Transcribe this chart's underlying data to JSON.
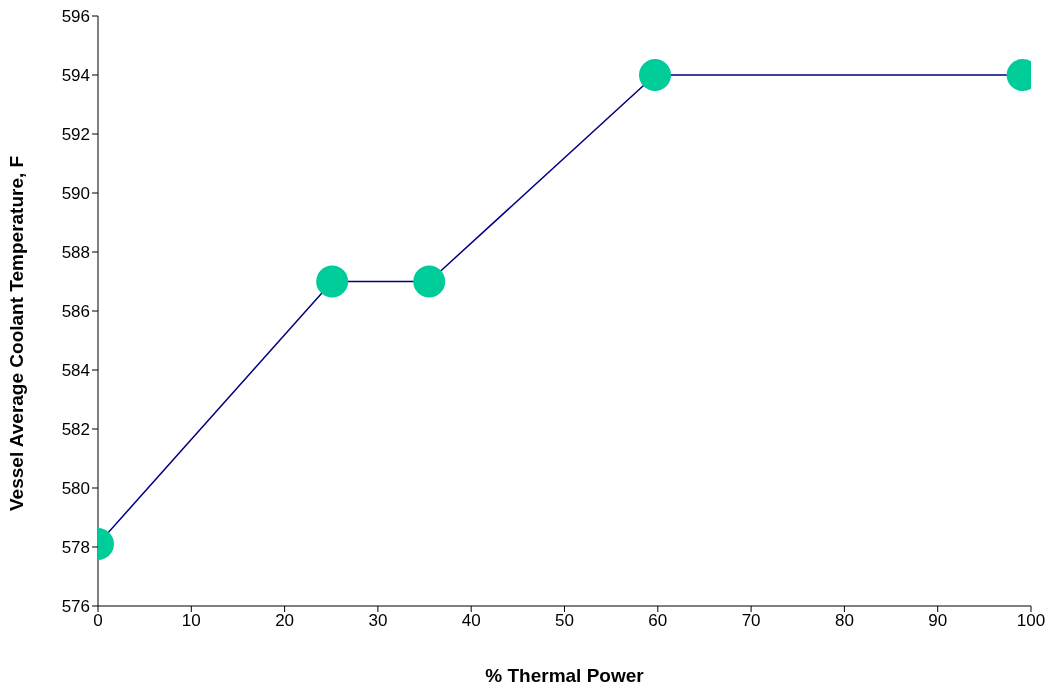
{
  "chart_data": {
    "type": "line",
    "xlabel": "% Thermal Power",
    "ylabel": "Vessel Average Coolant Temperature, F",
    "x": [
      0,
      25.1,
      35.5,
      59.7,
      99.1
    ],
    "series": [
      {
        "color": "#000080",
        "colors": [
          "#00cc99",
          "#00cc99",
          "#00cc99",
          "#00cc99",
          "#00cc99"
        ],
        "values": [
          578.1,
          587,
          587,
          594,
          594
        ]
      }
    ],
    "marker": "circle",
    "line_style": "solid",
    "xlim": [
      0,
      100
    ],
    "xticks": [
      0,
      10,
      20,
      30,
      40,
      50,
      60,
      70,
      80,
      90,
      100
    ],
    "ylim": [
      576,
      596
    ],
    "yticks": [
      576,
      578,
      580,
      582,
      584,
      586,
      588,
      590,
      592,
      594,
      596
    ],
    "grid": false,
    "legend": false
  }
}
